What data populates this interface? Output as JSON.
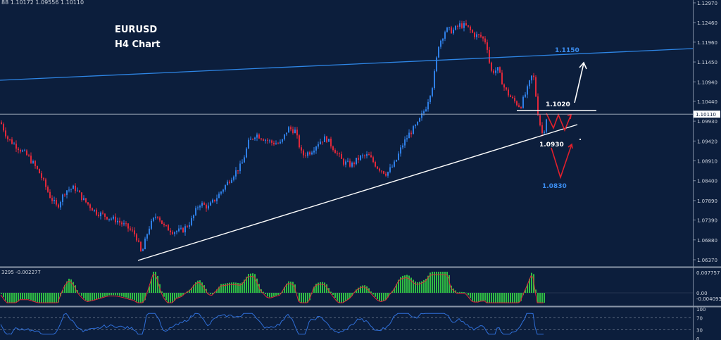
{
  "header": {
    "ohlc_text": "88 1.10172 1.09556 1.10110"
  },
  "title": {
    "line1": "EURUSD",
    "line2": "H4 Chart"
  },
  "colors": {
    "background": "#0c1e3c",
    "bull": "#2f7fe6",
    "bear": "#e0283a",
    "trendline": "#ffffff",
    "resistance": "#2e86e6",
    "histogram": "#2fbe43",
    "signal": "#e0283a",
    "rsi": "#2f6fd8",
    "annotation_red": "#e0202c",
    "annotation_white": "#ffffff",
    "axis_text": "#d0d6e0"
  },
  "chart_data": [
    {
      "type": "candlestick",
      "symbol": "EURUSD",
      "timeframe": "H4",
      "title": "EURUSD",
      "subtitle": "H4 Chart",
      "y_ticks": [
        "1.12970",
        "1.12460",
        "1.11960",
        "1.11450",
        "1.10940",
        "1.10440",
        "1.09930",
        "1.09420",
        "1.08910",
        "1.08400",
        "1.07890",
        "1.07390",
        "1.06880",
        "1.06370"
      ],
      "ylim": [
        1.0615,
        1.131
      ],
      "current_price": "1.10110",
      "close_path": [
        [
          0,
          1.099
        ],
        [
          10,
          1.0948
        ],
        [
          25,
          1.0925
        ],
        [
          40,
          1.09
        ],
        [
          55,
          1.086
        ],
        [
          70,
          1.08
        ],
        [
          80,
          1.0772
        ],
        [
          92,
          1.0815
        ],
        [
          105,
          1.0822
        ],
        [
          118,
          1.079
        ],
        [
          135,
          1.076
        ],
        [
          150,
          1.0748
        ],
        [
          165,
          1.0738
        ],
        [
          180,
          1.072
        ],
        [
          192,
          1.07
        ],
        [
          200,
          1.065
        ],
        [
          210,
          1.0718
        ],
        [
          222,
          1.0755
        ],
        [
          232,
          1.0722
        ],
        [
          245,
          1.071
        ],
        [
          258,
          1.0712
        ],
        [
          270,
          1.0735
        ],
        [
          282,
          1.0782
        ],
        [
          295,
          1.0772
        ],
        [
          308,
          1.08
        ],
        [
          320,
          1.083
        ],
        [
          332,
          1.086
        ],
        [
          342,
          1.088
        ],
        [
          352,
          1.0938
        ],
        [
          362,
          1.096
        ],
        [
          372,
          1.095
        ],
        [
          385,
          1.0938
        ],
        [
          398,
          1.0935
        ],
        [
          408,
          1.0975
        ],
        [
          418,
          1.0968
        ],
        [
          428,
          1.0905
        ],
        [
          440,
          1.0915
        ],
        [
          452,
          1.094
        ],
        [
          462,
          1.095
        ],
        [
          474,
          1.092
        ],
        [
          486,
          1.0888
        ],
        [
          498,
          1.088
        ],
        [
          510,
          1.09
        ],
        [
          522,
          1.0905
        ],
        [
          535,
          1.0875
        ],
        [
          548,
          1.0858
        ],
        [
          560,
          1.0885
        ],
        [
          570,
          1.093
        ],
        [
          580,
          1.096
        ],
        [
          592,
          1.0985
        ],
        [
          604,
          1.103
        ],
        [
          614,
          1.109
        ],
        [
          622,
          1.119
        ],
        [
          632,
          1.1228
        ],
        [
          642,
          1.1225
        ],
        [
          652,
          1.124
        ],
        [
          662,
          1.1236
        ],
        [
          672,
          1.1215
        ],
        [
          682,
          1.121
        ],
        [
          690,
          1.1195
        ],
        [
          696,
          1.112
        ],
        [
          706,
          1.1125
        ],
        [
          716,
          1.1075
        ],
        [
          726,
          1.105
        ],
        [
          738,
          1.103
        ],
        [
          748,
          1.1075
        ],
        [
          756,
          1.1118
        ],
        [
          764,
          1.1
        ],
        [
          770,
          1.0955
        ],
        [
          776,
          1.1011
        ]
      ],
      "indicators": [
        {
          "name": "MACD",
          "values_text": "3295 -0.002277",
          "ticks": [
            "0.007757",
            "0.00",
            "-0.004093"
          ]
        },
        {
          "name": "RSI",
          "ticks": [
            "100",
            "70",
            "30",
            "0"
          ]
        }
      ],
      "annotations": {
        "resistance_label": "1.1150",
        "support_top_label": "1.1020",
        "support_mid_label": "1.0930",
        "target_low_label": "1.0830"
      },
      "grid": false
    }
  ]
}
